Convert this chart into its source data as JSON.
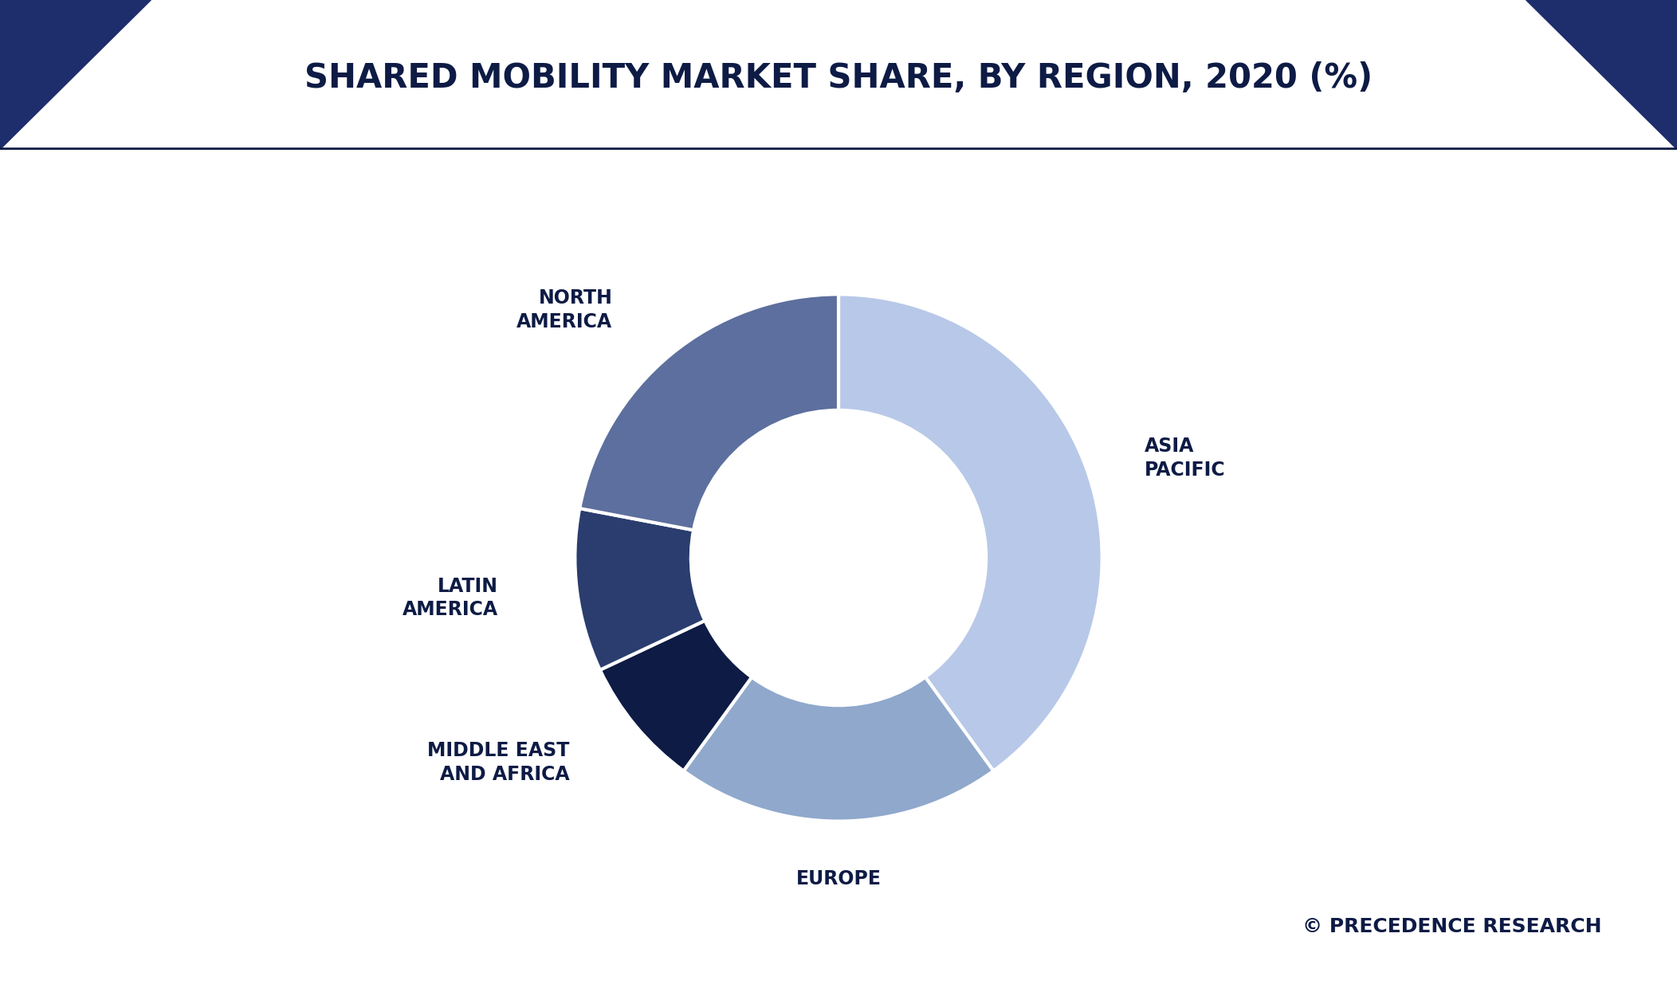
{
  "title": "SHARED MOBILITY MARKET SHARE, BY REGION, 2020 (%)",
  "segments": [
    {
      "label": "ASIA\nPACIFIC",
      "value": 40,
      "color": "#b8c8e8"
    },
    {
      "label": "EUROPE",
      "value": 20,
      "color": "#8fa8cc"
    },
    {
      "label": "MIDDLE EAST\nAND AFRICA",
      "value": 8,
      "color": "#0d1b45"
    },
    {
      "label": "LATIN\nAMERICA",
      "value": 10,
      "color": "#2a3d6e"
    },
    {
      "label": "NORTH\nAMERICA",
      "value": 22,
      "color": "#5c6f9e"
    }
  ],
  "background_color": "#ffffff",
  "title_color": "#0d1b45",
  "title_fontsize": 30,
  "label_fontsize": 17,
  "label_color": "#0d1b45",
  "watermark": "© PRECEDENCE RESEARCH",
  "watermark_color": "#0d1b45",
  "watermark_fontsize": 18,
  "header_color": "#ffffff",
  "header_tri_left_color": "#1e2d6b",
  "header_tri_right_color": "#1e2d6b",
  "header_bottom_line_color": "#0d1b45",
  "donut_width": 0.44,
  "start_angle": 90,
  "edge_color": "#ffffff",
  "edge_linewidth": 3.0
}
